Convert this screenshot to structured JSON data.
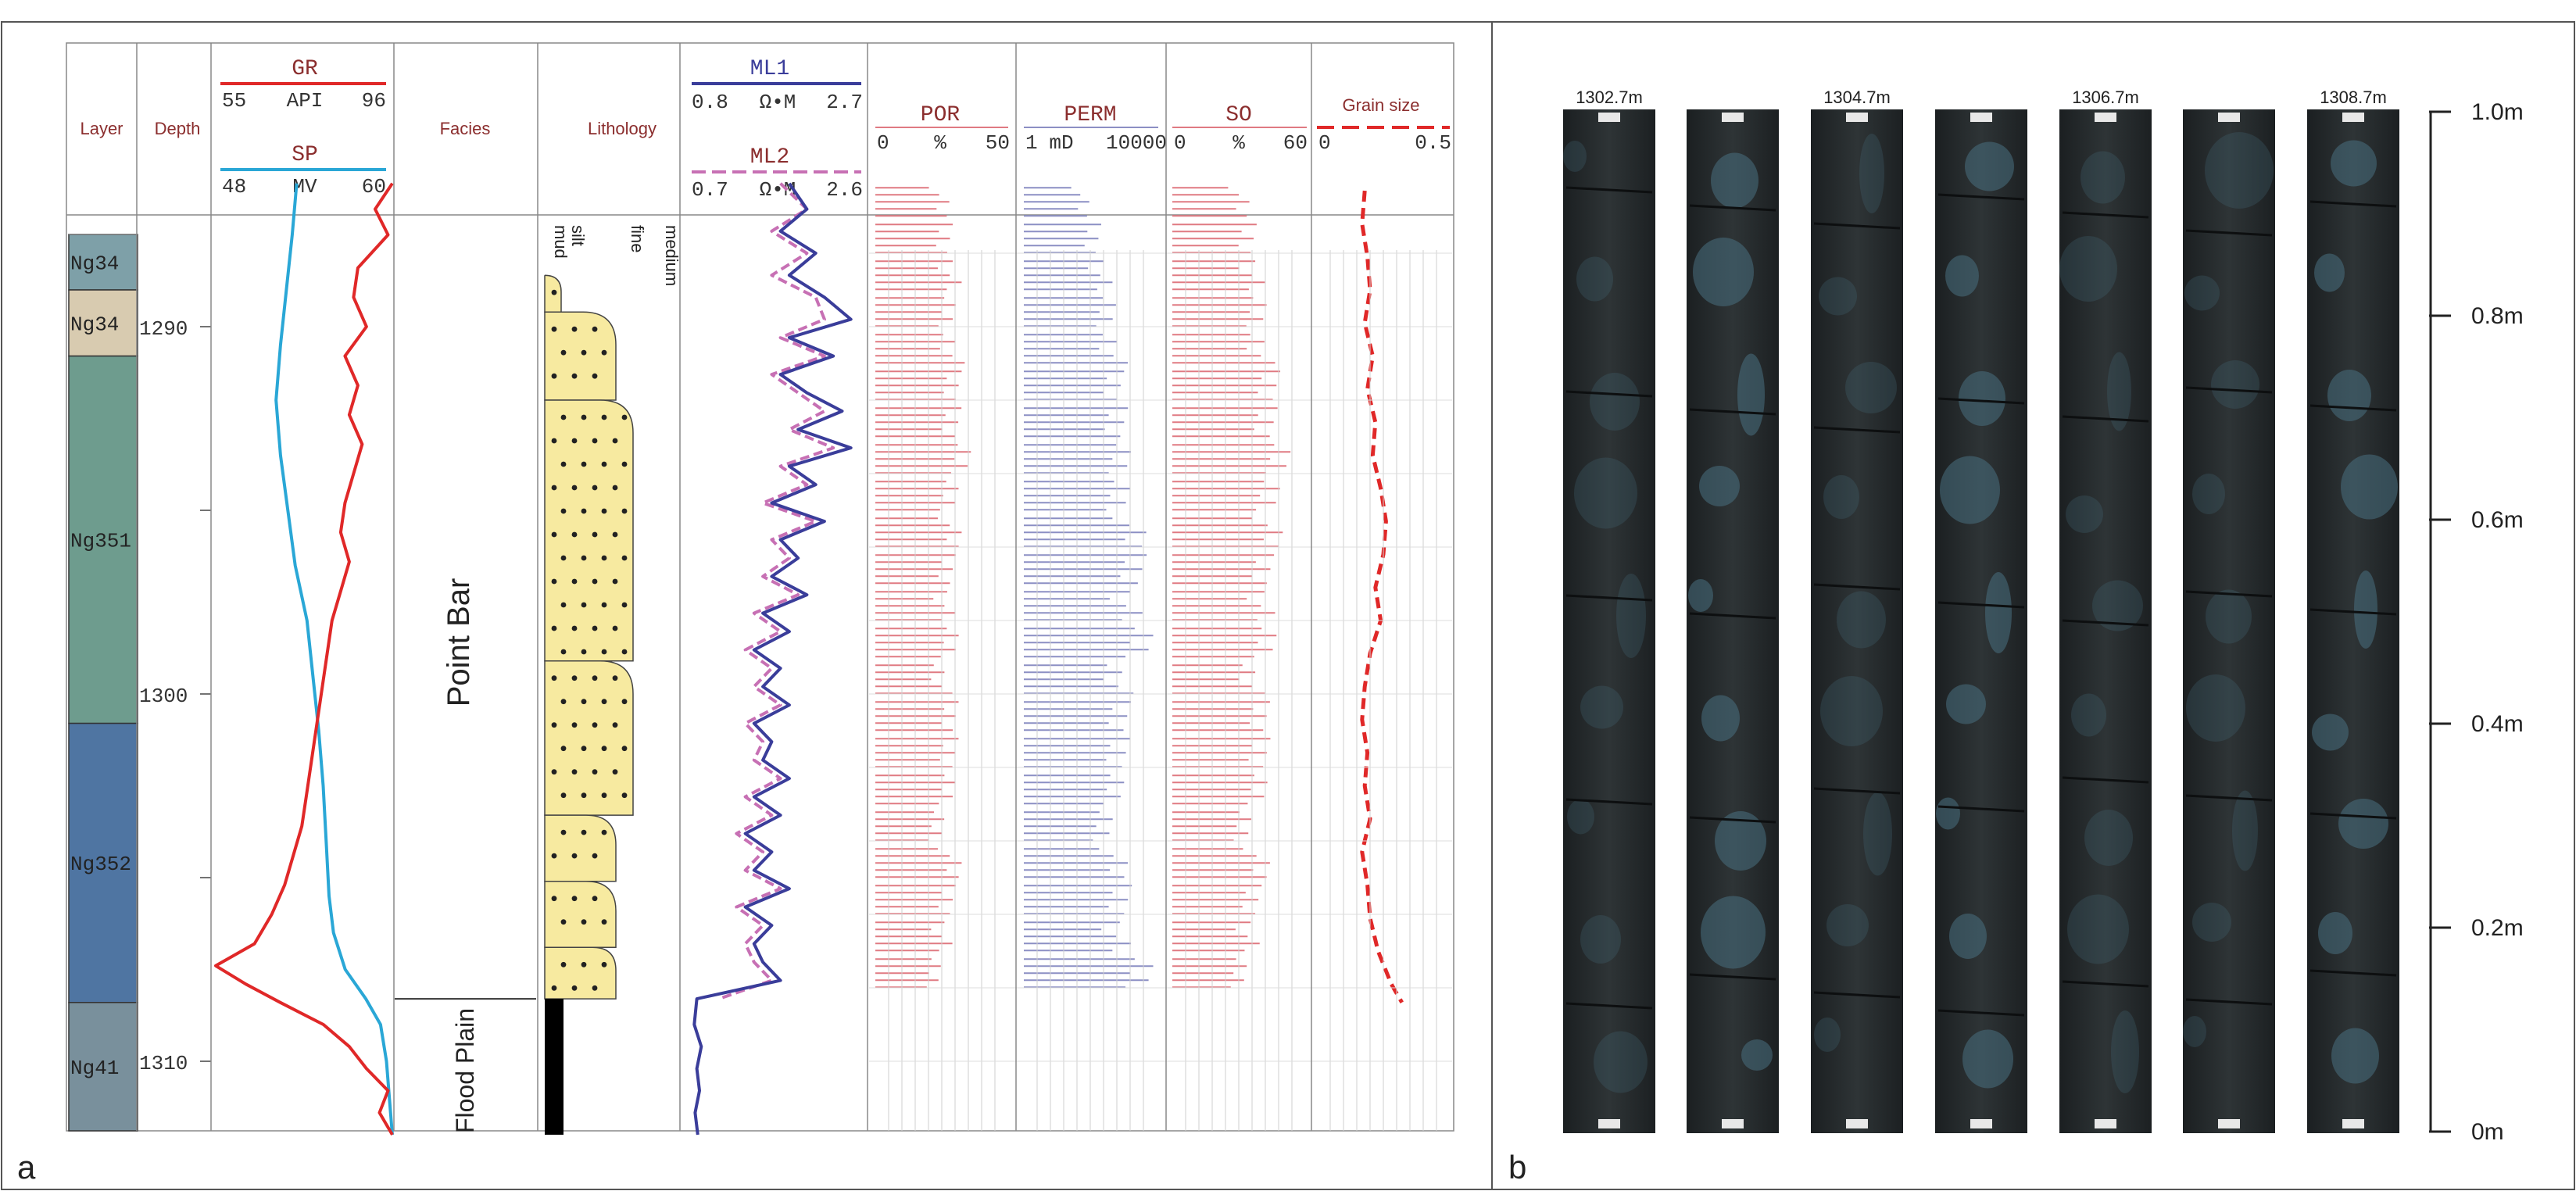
{
  "panel_a": {
    "label": "a",
    "headers": {
      "layer": "Layer",
      "depth": "Depth",
      "facies": "Facies",
      "lithology": "Lithology"
    },
    "curve_headers": {
      "gr": {
        "name": "GR",
        "min": "55",
        "unit": "API",
        "max": "96"
      },
      "sp": {
        "name": "SP",
        "min": "48",
        "unit": "MV",
        "max": "60"
      },
      "ml1": {
        "name": "ML1",
        "min": "0.8",
        "unit": "Ω•M",
        "max": "2.7"
      },
      "ml2": {
        "name": "ML2",
        "min": "0.7",
        "unit": "Ω•M",
        "max": "2.6"
      },
      "por": {
        "name": "POR",
        "min": "0",
        "unit": "%",
        "max": "50"
      },
      "perm": {
        "name": "PERM",
        "min": "1",
        "unit": "mD",
        "max": "10000"
      },
      "so": {
        "name": "SO",
        "min": "0",
        "unit": "%",
        "max": "60"
      },
      "grain": {
        "name": "Grain size",
        "min": "0",
        "unit": "",
        "max": "0.5"
      }
    },
    "grain_classes": [
      "mud",
      "silt",
      "fine",
      "medium"
    ],
    "layers": [
      {
        "name": "Ng34",
        "top": 1286.1,
        "bottom": 1289.0,
        "color": "#7ea0a8"
      },
      {
        "name": "Ng34",
        "top": 1289.0,
        "bottom": 1290.8,
        "color": "#d8cbb0"
      },
      {
        "name": "Ng351",
        "top": 1290.8,
        "bottom": 1300.8,
        "color": "#6e9c8e"
      },
      {
        "name": "Ng352",
        "top": 1300.8,
        "bottom": 1308.4,
        "color": "#4f75a2"
      },
      {
        "name": "Ng41",
        "top": 1308.4,
        "bottom": 1312.0,
        "color": "#79909c"
      }
    ],
    "depth_ticks": [
      "1290",
      "1300",
      "1310"
    ],
    "facies": [
      {
        "name": "Point Bar",
        "top": 1286.1,
        "bottom": 1308.3
      },
      {
        "name": "Flood Plain",
        "top": 1308.3,
        "bottom": 1312.0
      }
    ],
    "lithology_beds": [
      {
        "top": 1288.6,
        "bottom": 1289.6,
        "grain": "silt"
      },
      {
        "top": 1289.6,
        "bottom": 1292.0,
        "grain": "fine"
      },
      {
        "top": 1292.0,
        "bottom": 1299.1,
        "grain": "medium"
      },
      {
        "top": 1299.1,
        "bottom": 1303.3,
        "grain": "medium"
      },
      {
        "top": 1303.3,
        "bottom": 1305.1,
        "grain": "fine"
      },
      {
        "top": 1305.1,
        "bottom": 1306.9,
        "grain": "fine"
      },
      {
        "top": 1306.9,
        "bottom": 1308.3,
        "grain": "fine"
      },
      {
        "top": 1308.3,
        "bottom": 1312.0,
        "grain": "mud"
      }
    ]
  },
  "panel_b": {
    "label": "b",
    "core_labels": [
      "1302.7m",
      "",
      "1304.7m",
      "",
      "1306.7m",
      "",
      "1308.7m"
    ],
    "scale_ticks": [
      "1.0m",
      "0.8m",
      "0.6m",
      "0.4m",
      "0.2m",
      "0m"
    ]
  },
  "colors": {
    "gr": "#e02828",
    "sp": "#2aa7d6",
    "ml1": "#3a3d9a",
    "ml2": "#c770b4",
    "por": "#e07a82",
    "perm": "#8c8fc4",
    "so": "#e07a82",
    "grain": "#e02828",
    "header_text": "#8b2e2e",
    "sand": "#f7eaa0",
    "core_dark": "#262b2d",
    "core_blue": "#48707f"
  },
  "chart_data": [
    {
      "type": "line",
      "series": [
        {
          "name": "GR",
          "x_range": [
            55,
            96
          ],
          "depth": [
            1286.1,
            1286.8,
            1287.5,
            1288.4,
            1289.2,
            1290.0,
            1290.8,
            1291.6,
            1292.4,
            1293.2,
            1294.0,
            1294.8,
            1295.6,
            1296.4,
            1297.2,
            1298.0,
            1298.8,
            1299.6,
            1300.4,
            1301.2,
            1302.0,
            1302.8,
            1303.6,
            1304.4,
            1305.2,
            1306.0,
            1306.8,
            1307.4,
            1307.9,
            1308.4,
            1309.0,
            1309.6,
            1310.2,
            1310.8,
            1311.4,
            1312.0
          ],
          "values": [
            96,
            92,
            95,
            88,
            87,
            90,
            85,
            88,
            86,
            89,
            87,
            85,
            84,
            86,
            84,
            82,
            81,
            80,
            79,
            78,
            77,
            76,
            75,
            73,
            71,
            68,
            64,
            55,
            62,
            70,
            80,
            86,
            90,
            95,
            93,
            96
          ]
        },
        {
          "name": "SP",
          "x_range": [
            48,
            60
          ],
          "depth": [
            1286.1,
            1287.5,
            1289.0,
            1290.5,
            1292.0,
            1293.5,
            1295.0,
            1296.5,
            1298.0,
            1299.5,
            1301.0,
            1302.5,
            1304.0,
            1305.5,
            1306.5,
            1307.5,
            1308.3,
            1309.0,
            1310.0,
            1311.0,
            1312.0
          ],
          "values": [
            53.5,
            53.2,
            52.8,
            52.4,
            52.1,
            52.4,
            52.9,
            53.4,
            54.2,
            54.6,
            55.0,
            55.3,
            55.5,
            55.7,
            56.0,
            56.8,
            58.2,
            59.2,
            59.6,
            59.8,
            60.0
          ]
        }
      ],
      "y_label": "Depth",
      "ylim": [
        1286.1,
        1312.0
      ]
    },
    {
      "type": "line",
      "series": [
        {
          "name": "ML1",
          "x_range": [
            0.8,
            2.7
          ],
          "depth": [
            1286.1,
            1286.8,
            1287.4,
            1288.0,
            1288.6,
            1289.2,
            1289.8,
            1290.3,
            1290.8,
            1291.3,
            1291.8,
            1292.3,
            1292.8,
            1293.3,
            1293.8,
            1294.3,
            1294.8,
            1295.3,
            1295.8,
            1296.3,
            1296.8,
            1297.3,
            1297.8,
            1298.3,
            1298.8,
            1299.3,
            1299.8,
            1300.3,
            1300.8,
            1301.3,
            1301.8,
            1302.3,
            1302.8,
            1303.3,
            1303.8,
            1304.3,
            1304.8,
            1305.3,
            1305.8,
            1306.3,
            1306.8,
            1307.3,
            1307.8,
            1308.3,
            1309.0,
            1309.6,
            1310.2,
            1310.8,
            1311.4,
            1312.0
          ],
          "values": [
            1.9,
            2.1,
            1.8,
            2.2,
            1.9,
            2.3,
            2.6,
            1.9,
            2.4,
            1.8,
            2.1,
            2.5,
            2.0,
            2.6,
            1.9,
            2.2,
            1.7,
            2.3,
            1.8,
            2.0,
            1.7,
            2.1,
            1.6,
            1.9,
            1.5,
            1.8,
            1.6,
            1.9,
            1.5,
            1.7,
            1.6,
            1.9,
            1.5,
            1.8,
            1.4,
            1.7,
            1.5,
            1.9,
            1.4,
            1.7,
            1.5,
            1.6,
            1.8,
            0.85,
            0.82,
            0.9,
            0.85,
            0.88,
            0.83,
            0.86
          ]
        },
        {
          "name": "ML2",
          "x_range": [
            0.7,
            2.6
          ],
          "depth": [
            1286.1,
            1286.8,
            1287.4,
            1288.0,
            1288.6,
            1289.2,
            1289.8,
            1290.3,
            1290.8,
            1291.3,
            1291.8,
            1292.3,
            1292.8,
            1293.3,
            1293.8,
            1294.3,
            1294.8,
            1295.3,
            1295.8,
            1296.3,
            1296.8,
            1297.3,
            1297.8,
            1298.3,
            1298.8,
            1299.3,
            1299.8,
            1300.3,
            1300.8,
            1301.3,
            1301.8,
            1302.3,
            1302.8,
            1303.3,
            1303.8,
            1304.3,
            1304.8,
            1305.3,
            1305.8,
            1306.3,
            1306.8,
            1307.3,
            1307.8,
            1308.3
          ],
          "values": [
            1.7,
            2.0,
            1.6,
            2.0,
            1.6,
            2.1,
            2.2,
            1.7,
            2.2,
            1.6,
            1.9,
            2.2,
            1.8,
            2.3,
            1.7,
            2.0,
            1.5,
            2.1,
            1.6,
            1.8,
            1.5,
            1.9,
            1.4,
            1.7,
            1.3,
            1.6,
            1.4,
            1.7,
            1.3,
            1.5,
            1.4,
            1.7,
            1.3,
            1.6,
            1.2,
            1.5,
            1.3,
            1.7,
            1.2,
            1.5,
            1.3,
            1.4,
            1.6,
            1.0
          ]
        }
      ],
      "y_label": "Depth",
      "ylim": [
        1286.1,
        1312.0
      ]
    },
    {
      "type": "bar",
      "orientation": "horizontal",
      "series": [
        {
          "name": "POR",
          "x_range": [
            0,
            50
          ],
          "depth": [
            1286.6,
            1287.6,
            1288.6,
            1289.6,
            1290.6,
            1291.6,
            1292.6,
            1293.6,
            1294.6,
            1295.6,
            1296.6,
            1297.6,
            1298.6,
            1299.6,
            1300.6,
            1301.6,
            1302.6,
            1303.6,
            1304.6,
            1305.6,
            1306.6,
            1307.6
          ],
          "values": [
            24,
            26,
            28,
            27,
            29,
            28,
            30,
            31,
            29,
            28,
            27,
            26,
            28,
            25,
            27,
            29,
            26,
            24,
            28,
            27,
            25,
            22
          ]
        },
        {
          "name": "PERM",
          "x_range": [
            1,
            10000
          ],
          "depth": [
            1286.6,
            1287.6,
            1288.6,
            1289.6,
            1290.6,
            1291.6,
            1292.6,
            1293.6,
            1294.6,
            1295.6,
            1296.6,
            1297.6,
            1298.6,
            1299.6,
            1300.6,
            1301.6,
            1302.6,
            1303.6,
            1304.6,
            1305.6,
            1306.6,
            1307.6
          ],
          "values": [
            50,
            120,
            200,
            300,
            500,
            400,
            800,
            600,
            900,
            1500,
            2000,
            1200,
            3000,
            700,
            600,
            900,
            400,
            300,
            500,
            800,
            600,
            3000
          ]
        },
        {
          "name": "SO",
          "x_range": [
            0,
            60
          ],
          "depth": [
            1286.6,
            1287.6,
            1288.6,
            1289.6,
            1290.6,
            1291.6,
            1292.6,
            1293.6,
            1294.6,
            1295.6,
            1296.6,
            1297.6,
            1298.6,
            1299.6,
            1300.6,
            1301.6,
            1302.6,
            1303.6,
            1304.6,
            1305.6,
            1306.6,
            1307.6
          ],
          "values": [
            30,
            34,
            36,
            38,
            40,
            42,
            44,
            46,
            45,
            43,
            41,
            40,
            42,
            36,
            38,
            41,
            37,
            33,
            38,
            36,
            34,
            30
          ]
        },
        {
          "name": "Grain size",
          "x_range": [
            0,
            0.5
          ],
          "depth": [
            1286.3,
            1287.2,
            1288.1,
            1289.0,
            1289.9,
            1290.8,
            1291.7,
            1292.6,
            1293.5,
            1294.4,
            1295.3,
            1296.2,
            1297.1,
            1298.0,
            1298.9,
            1299.8,
            1300.7,
            1301.6,
            1302.5,
            1303.4,
            1304.3,
            1305.2,
            1306.1,
            1307.0,
            1307.9,
            1308.4
          ],
          "values": [
            0.18,
            0.17,
            0.19,
            0.2,
            0.18,
            0.21,
            0.19,
            0.22,
            0.21,
            0.24,
            0.26,
            0.25,
            0.22,
            0.24,
            0.2,
            0.18,
            0.17,
            0.19,
            0.18,
            0.2,
            0.17,
            0.19,
            0.2,
            0.23,
            0.28,
            0.32
          ]
        }
      ],
      "y_label": "Depth",
      "ylim": [
        1286.1,
        1312.0
      ]
    }
  ]
}
